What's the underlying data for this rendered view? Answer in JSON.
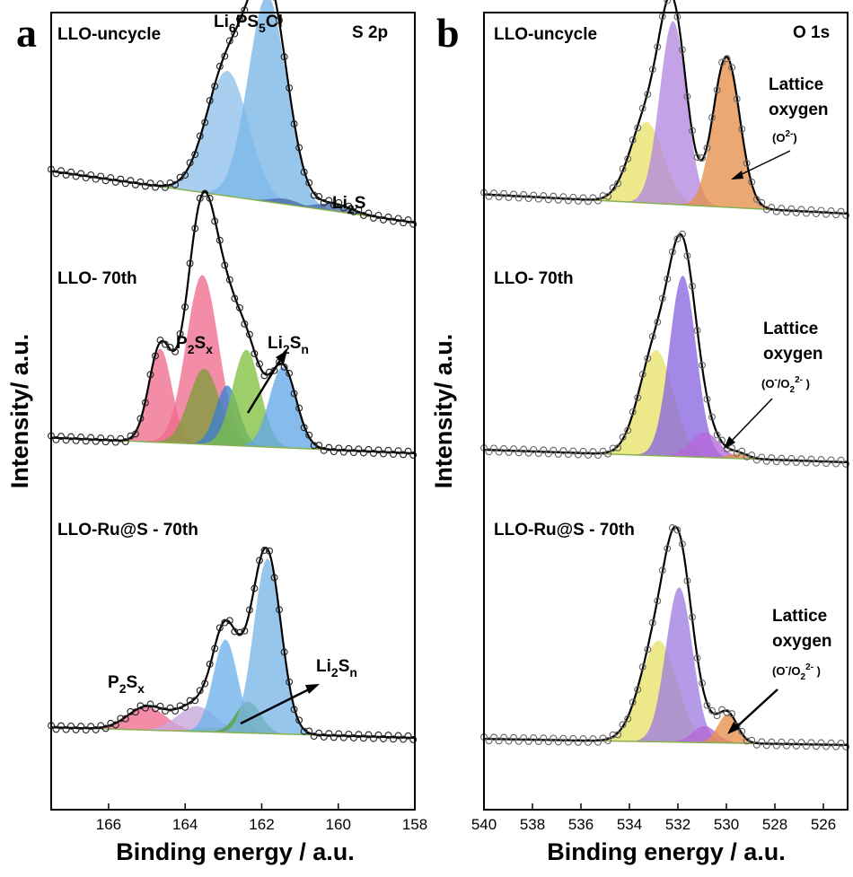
{
  "chart_data": [
    {
      "type": "area",
      "panel_label": "a",
      "region": "S 2p",
      "xlabel": "Binding energy / a.u.",
      "ylabel": "Intensity/ a.u.",
      "xlim": [
        167.5,
        158
      ],
      "x_ticks": [
        166,
        164,
        162,
        160,
        158
      ],
      "stacks": [
        {
          "sample": "LLO-uncycle",
          "baseline": 0.28,
          "peaks": [
            {
              "label": "",
              "center": 162.9,
              "height": 0.68,
              "width": 0.55,
              "color": "#8fc1ea"
            },
            {
              "label": "Li6PS5Cl",
              "center": 161.85,
              "height": 1.12,
              "width": 0.5,
              "color": "#7ab6e8"
            },
            {
              "label": "",
              "center": 161.4,
              "height": 0.03,
              "width": 0.35,
              "color": "#4a6aa8"
            },
            {
              "label": "Li2S",
              "center": 160.1,
              "height": 0.04,
              "width": 0.45,
              "color": "#4a6aa8"
            }
          ]
        },
        {
          "sample": "LLO- 70th",
          "baseline": 0.06,
          "peaks": [
            {
              "label": "",
              "center": 164.65,
              "height": 0.36,
              "width": 0.3,
              "color": "#f06b8e"
            },
            {
              "label": "P2Sx",
              "center": 163.55,
              "height": 0.65,
              "width": 0.42,
              "color": "#f06b8e"
            },
            {
              "label": "",
              "center": 163.5,
              "height": 0.29,
              "width": 0.4,
              "color": "#7f9c3c"
            },
            {
              "label": "",
              "center": 162.9,
              "height": 0.23,
              "width": 0.3,
              "color": "#3a7fd0"
            },
            {
              "label": "Li2Sn",
              "center": 162.4,
              "height": 0.37,
              "width": 0.36,
              "color": "#80c040"
            },
            {
              "label": "",
              "center": 161.45,
              "height": 0.31,
              "width": 0.35,
              "color": "#63a8e8"
            }
          ]
        },
        {
          "sample": "LLO-Ru@S - 70th",
          "baseline": 0.05,
          "peaks": [
            {
              "label": "P2Sx",
              "center": 165.0,
              "height": 0.11,
              "width": 0.5,
              "color": "#f06b8e"
            },
            {
              "label": "",
              "center": 163.7,
              "height": 0.12,
              "width": 0.5,
              "color": "#c7a6de"
            },
            {
              "label": "",
              "center": 163.2,
              "height": 0.02,
              "width": 0.5,
              "color": "#80c040"
            },
            {
              "label": "",
              "center": 162.95,
              "height": 0.44,
              "width": 0.32,
              "color": "#6fb2ea"
            },
            {
              "label": "Li2Sn",
              "center": 162.35,
              "height": 0.15,
              "width": 0.32,
              "color": "#5a9c3a"
            },
            {
              "label": "",
              "center": 161.85,
              "height": 0.83,
              "width": 0.36,
              "color": "#7ab6e8"
            }
          ]
        }
      ]
    },
    {
      "type": "area",
      "panel_label": "b",
      "region": "O 1s",
      "xlabel": "Binding energy / a.u.",
      "ylabel": "Intensity/ a.u.",
      "xlim": [
        540,
        525
      ],
      "x_ticks": [
        540,
        538,
        536,
        534,
        532,
        530,
        528,
        526
      ],
      "stacks": [
        {
          "sample": "LLO-uncycle",
          "baseline": 0.1,
          "annotation": {
            "title": "Lattice\noxygen",
            "species": "(O2-)"
          },
          "peaks": [
            {
              "label": "",
              "center": 533.3,
              "height": 0.42,
              "width": 0.7,
              "color": "#e8e36a"
            },
            {
              "label": "",
              "center": 532.2,
              "height": 0.95,
              "width": 0.55,
              "color": "#b488e0"
            },
            {
              "label": "Lattice oxygen (O2-)",
              "center": 530.0,
              "height": 0.78,
              "width": 0.55,
              "color": "#e5904a"
            }
          ]
        },
        {
          "sample": "LLO- 70th",
          "baseline": 0.05,
          "annotation": {
            "title": "Lattice\noxygen",
            "species": "(O-/O22- )"
          },
          "peaks": [
            {
              "label": "",
              "center": 532.9,
              "height": 0.42,
              "width": 0.7,
              "color": "#e8e36a"
            },
            {
              "label": "",
              "center": 531.8,
              "height": 0.72,
              "width": 0.55,
              "color": "#8a66e0"
            },
            {
              "label": "Lattice oxygen (O-/O22- )",
              "center": 530.9,
              "height": 0.1,
              "width": 0.6,
              "color": "#b468d8"
            },
            {
              "label": "",
              "center": 529.5,
              "height": 0.02,
              "width": 0.4,
              "color": "#e5904a"
            }
          ]
        },
        {
          "sample": "LLO-Ru@S - 70th",
          "baseline": 0.03,
          "annotation": {
            "title": "Lattice\noxygen",
            "species": "(O-/O22- )"
          },
          "peaks": [
            {
              "label": "",
              "center": 532.8,
              "height": 0.49,
              "width": 0.75,
              "color": "#e8e36a"
            },
            {
              "label": "",
              "center": 531.95,
              "height": 0.75,
              "width": 0.55,
              "color": "#a07ee0"
            },
            {
              "label": "",
              "center": 530.9,
              "height": 0.08,
              "width": 0.5,
              "color": "#b468d8"
            },
            {
              "label": "Lattice oxygen (O-/O22- )",
              "center": 529.95,
              "height": 0.14,
              "width": 0.4,
              "color": "#e5904a"
            }
          ]
        }
      ]
    }
  ],
  "texts": {
    "a": {
      "panel": "a",
      "region": "S 2p",
      "s1": "LLO-uncycle",
      "s2": "LLO- 70th",
      "s3": "LLO-Ru@S - 70th",
      "li6": {
        "a": "Li",
        "b": "6",
        "c": "PS",
        "d": "5",
        "e": "Cl"
      },
      "li2s": {
        "a": "Li",
        "b": "2",
        "c": "S"
      },
      "p2sx": {
        "a": "P",
        "b": "2",
        "c": "S",
        "d": "x"
      },
      "li2sn": {
        "a": "Li",
        "b": "2",
        "c": "S",
        "d": "n"
      },
      "ticks": [
        "166",
        "164",
        "162",
        "160",
        "158"
      ]
    },
    "b": {
      "panel": "b",
      "region": "O 1s",
      "s1": "LLO-uncycle",
      "s2": "LLO- 70th",
      "s3": "LLO-Ru@S - 70th",
      "lat1": "Lattice",
      "lat2": "oxygen",
      "o2a": "(O",
      "o2sup": "2-",
      "o2b": ")",
      "oxa": "(O",
      "oxsup1": "-",
      "oxb": "/O",
      "oxsub": "2",
      "oxsup2": "2-",
      "oxc": " )",
      "ticks": [
        "540",
        "538",
        "536",
        "534",
        "532",
        "530",
        "528",
        "526"
      ]
    },
    "xlabel": "Binding energy / a.u.",
    "ylabel": "Intensity/ a.u."
  }
}
